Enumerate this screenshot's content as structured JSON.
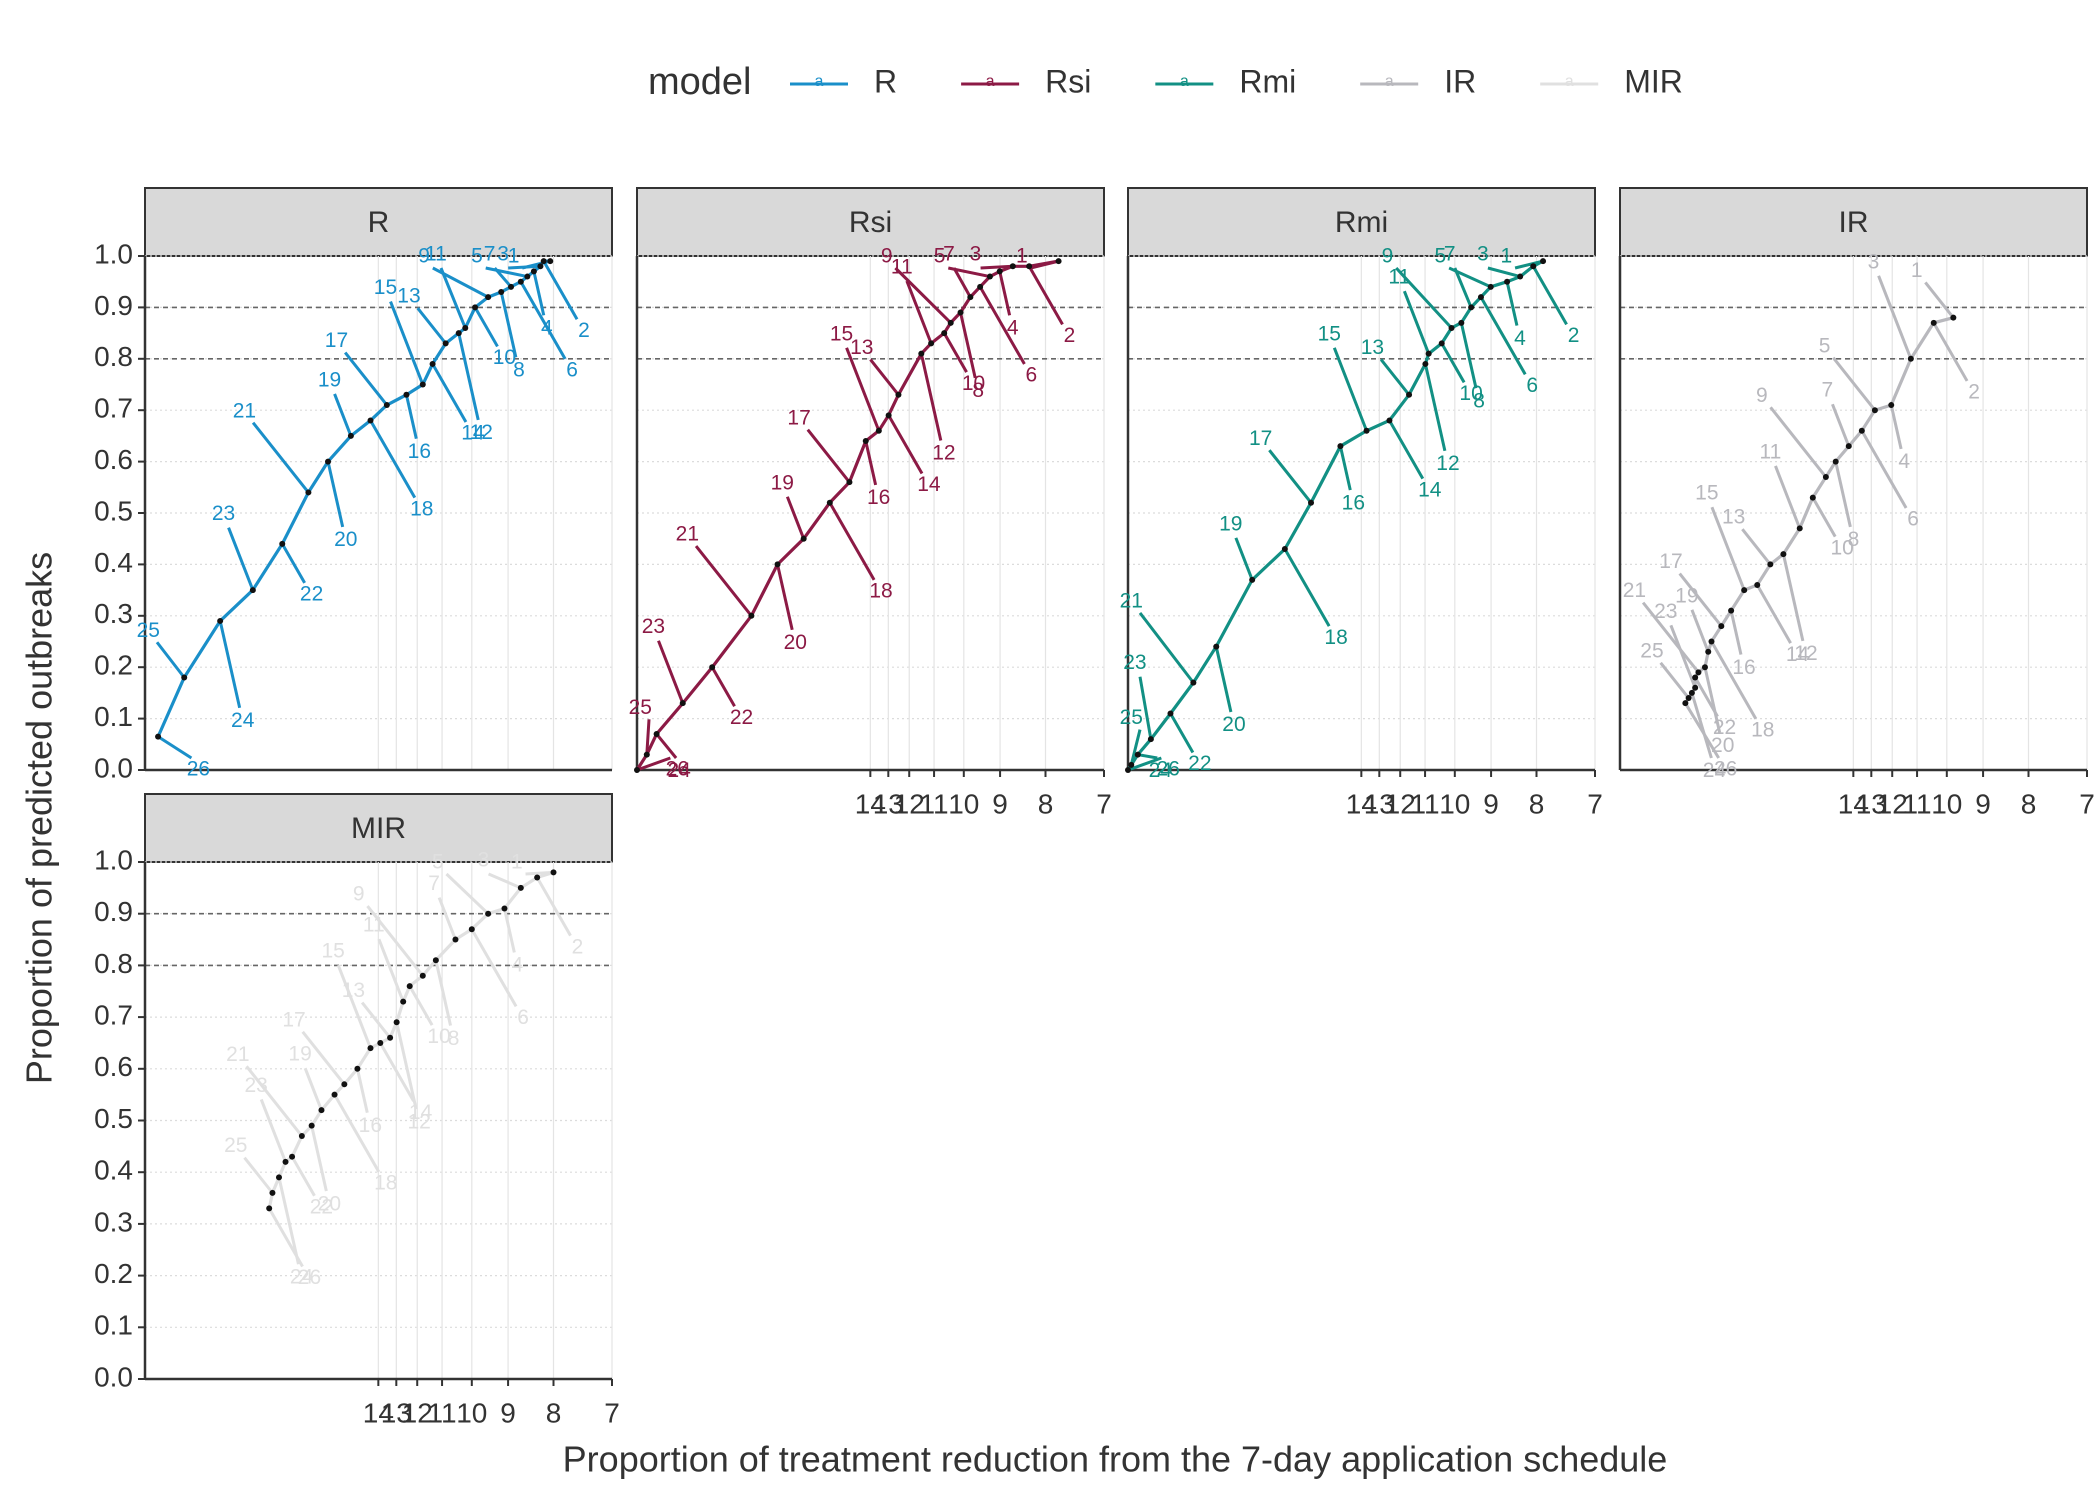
{
  "chart_data": {
    "type": "line",
    "legend_title": "model",
    "xlabel": "Proportion of treatment reduction from the 7-day application schedule",
    "ylabel": "Proportion of predicted outbreaks",
    "xlim": [
      0,
      0.1429
    ],
    "xticks": [
      {
        "value": 0.0714,
        "label": "14"
      },
      {
        "value": 0.0769,
        "label": "13"
      },
      {
        "value": 0.0833,
        "label": "12"
      },
      {
        "value": 0.0909,
        "label": "11"
      },
      {
        "value": 0.1,
        "label": "10"
      },
      {
        "value": 0.1111,
        "label": "9"
      },
      {
        "value": 0.125,
        "label": "8"
      },
      {
        "value": 0.1429,
        "label": "7"
      }
    ],
    "ylim": [
      0,
      1
    ],
    "yticks": [
      {
        "value": 0,
        "label": "0.0"
      },
      {
        "value": 0.1,
        "label": "0.1"
      },
      {
        "value": 0.2,
        "label": "0.2"
      },
      {
        "value": 0.3,
        "label": "0.3"
      },
      {
        "value": 0.4,
        "label": "0.4"
      },
      {
        "value": 0.5,
        "label": "0.5"
      },
      {
        "value": 0.6,
        "label": "0.6"
      },
      {
        "value": 0.7,
        "label": "0.7"
      },
      {
        "value": 0.8,
        "label": "0.8"
      },
      {
        "value": 0.9,
        "label": "0.9"
      },
      {
        "value": 1,
        "label": "1.0"
      }
    ],
    "hlines": [
      0.8,
      0.9
    ],
    "grid": true,
    "legend": "top",
    "point_labels": [
      "1",
      "2",
      "3",
      "4",
      "5",
      "6",
      "7",
      "8",
      "9",
      "10",
      "11",
      "12",
      "13",
      "14",
      "15",
      "16",
      "17",
      "18",
      "19",
      "20",
      "21",
      "22",
      "23",
      "24",
      "25",
      "26"
    ],
    "series": [
      {
        "name": "R",
        "color": "#1a8fc9",
        "x": [
          0.124,
          0.122,
          0.121,
          0.119,
          0.117,
          0.115,
          0.112,
          0.109,
          0.105,
          0.101,
          0.098,
          0.096,
          0.092,
          0.088,
          0.085,
          0.08,
          0.074,
          0.069,
          0.063,
          0.056,
          0.05,
          0.042,
          0.033,
          0.023,
          0.012,
          0.004
        ],
        "values": [
          0.99,
          0.99,
          0.98,
          0.97,
          0.96,
          0.95,
          0.94,
          0.93,
          0.92,
          0.9,
          0.86,
          0.85,
          0.83,
          0.79,
          0.75,
          0.73,
          0.71,
          0.68,
          0.65,
          0.6,
          0.54,
          0.44,
          0.35,
          0.29,
          0.18,
          0.065
        ]
      },
      {
        "name": "Rsi",
        "color": "#8c1a45",
        "x": [
          0.129,
          0.12,
          0.115,
          0.111,
          0.108,
          0.105,
          0.102,
          0.099,
          0.096,
          0.094,
          0.09,
          0.087,
          0.08,
          0.077,
          0.074,
          0.07,
          0.065,
          0.059,
          0.051,
          0.043,
          0.035,
          0.023,
          0.014,
          0.006,
          0.003,
          0.0
        ],
        "values": [
          0.99,
          0.98,
          0.98,
          0.97,
          0.96,
          0.94,
          0.92,
          0.89,
          0.87,
          0.85,
          0.83,
          0.81,
          0.73,
          0.69,
          0.66,
          0.64,
          0.56,
          0.52,
          0.45,
          0.4,
          0.3,
          0.2,
          0.13,
          0.07,
          0.03,
          0.0
        ]
      },
      {
        "name": "Rmi",
        "color": "#129084",
        "x": [
          0.127,
          0.124,
          0.12,
          0.116,
          0.111,
          0.108,
          0.105,
          0.102,
          0.099,
          0.096,
          0.092,
          0.091,
          0.086,
          0.08,
          0.073,
          0.065,
          0.056,
          0.048,
          0.038,
          0.027,
          0.02,
          0.013,
          0.007,
          0.003,
          0.001,
          0.0
        ],
        "values": [
          0.99,
          0.98,
          0.96,
          0.95,
          0.94,
          0.92,
          0.9,
          0.87,
          0.86,
          0.83,
          0.81,
          0.79,
          0.73,
          0.68,
          0.66,
          0.63,
          0.52,
          0.43,
          0.37,
          0.24,
          0.17,
          0.11,
          0.06,
          0.03,
          0.01,
          0.0
        ]
      },
      {
        "name": "IR",
        "color": "#b8b8bd",
        "x": [
          0.102,
          0.096,
          0.089,
          0.083,
          0.078,
          0.074,
          0.07,
          0.066,
          0.063,
          0.059,
          0.055,
          0.05,
          0.046,
          0.042,
          0.038,
          0.034,
          0.031,
          0.028,
          0.027,
          0.026,
          0.024,
          0.023,
          0.023,
          0.022,
          0.021,
          0.02
        ],
        "values": [
          0.88,
          0.87,
          0.8,
          0.71,
          0.7,
          0.66,
          0.63,
          0.6,
          0.57,
          0.53,
          0.47,
          0.42,
          0.4,
          0.36,
          0.35,
          0.31,
          0.28,
          0.25,
          0.23,
          0.2,
          0.19,
          0.18,
          0.16,
          0.15,
          0.14,
          0.13
        ]
      },
      {
        "name": "MIR",
        "color": "#e0e0e0",
        "x": [
          0.125,
          0.12,
          0.115,
          0.11,
          0.105,
          0.1,
          0.095,
          0.089,
          0.085,
          0.081,
          0.079,
          0.077,
          0.075,
          0.072,
          0.069,
          0.065,
          0.061,
          0.058,
          0.054,
          0.051,
          0.048,
          0.045,
          0.043,
          0.041,
          0.039,
          0.038
        ],
        "values": [
          0.98,
          0.97,
          0.95,
          0.91,
          0.9,
          0.87,
          0.85,
          0.81,
          0.78,
          0.76,
          0.73,
          0.69,
          0.66,
          0.65,
          0.64,
          0.6,
          0.57,
          0.55,
          0.52,
          0.49,
          0.47,
          0.43,
          0.42,
          0.39,
          0.36,
          0.33
        ]
      }
    ]
  }
}
